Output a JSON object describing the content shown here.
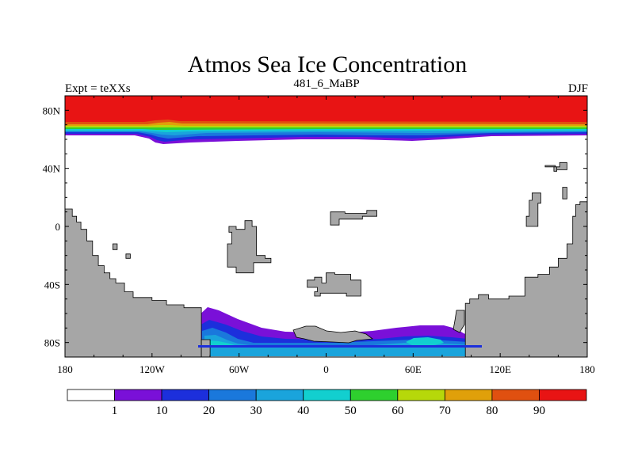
{
  "chart_data": {
    "type": "heatmap",
    "title": "Atmos Sea Ice Concentration",
    "left_label": "Expt = teXXs",
    "center_label": "481_6_MaBP",
    "right_label": "DJF",
    "xlim": [
      -180,
      180
    ],
    "ylim": [
      -90,
      90
    ],
    "x_ticks": [
      {
        "value": -180,
        "label": "180"
      },
      {
        "value": -120,
        "label": "120W"
      },
      {
        "value": -60,
        "label": "60W"
      },
      {
        "value": 0,
        "label": "0"
      },
      {
        "value": 60,
        "label": "60E"
      },
      {
        "value": 120,
        "label": "120E"
      },
      {
        "value": 180,
        "label": "180"
      }
    ],
    "y_ticks": [
      {
        "value": 80,
        "label": "80N"
      },
      {
        "value": 40,
        "label": "40N"
      },
      {
        "value": 0,
        "label": "0"
      },
      {
        "value": -40,
        "label": "40S"
      },
      {
        "value": -80,
        "label": "80S"
      }
    ],
    "colorbar": {
      "levels": [
        "1",
        "10",
        "20",
        "30",
        "40",
        "50",
        "60",
        "70",
        "80",
        "90"
      ],
      "colors": [
        "#ffffff",
        "#7a10d8",
        "#1c2fdc",
        "#1a78dc",
        "#1aa4dc",
        "#12cfcf",
        "#2ed02e",
        "#b6d80a",
        "#e0a00a",
        "#e05010",
        "#e81414"
      ]
    },
    "land_color": "#a6a6a6",
    "arctic_ice": {
      "description_band_lats": [
        70,
        66,
        64,
        62
      ],
      "top_value": 95
    },
    "land_masses": [
      {
        "name": "americas",
        "outline": [
          [
            -180,
            -90
          ],
          [
            -180,
            12
          ],
          [
            -175,
            12
          ],
          [
            -175,
            7
          ],
          [
            -172,
            7
          ],
          [
            -172,
            3
          ],
          [
            -169,
            3
          ],
          [
            -169,
            -2
          ],
          [
            -165,
            -2
          ],
          [
            -165,
            -10
          ],
          [
            -161,
            -10
          ],
          [
            -161,
            -20
          ],
          [
            -157,
            -20
          ],
          [
            -157,
            -27
          ],
          [
            -153,
            -27
          ],
          [
            -153,
            -32
          ],
          [
            -149,
            -32
          ],
          [
            -149,
            -36
          ],
          [
            -145,
            -36
          ],
          [
            -145,
            -39
          ],
          [
            -139,
            -39
          ],
          [
            -139,
            -45
          ],
          [
            -133,
            -45
          ],
          [
            -133,
            -49
          ],
          [
            -120,
            -49
          ],
          [
            -120,
            -51
          ],
          [
            -110,
            -51
          ],
          [
            -110,
            -54
          ],
          [
            -98,
            -54
          ],
          [
            -98,
            -56
          ],
          [
            -86,
            -56
          ],
          [
            -86,
            -90
          ]
        ]
      },
      {
        "name": "eurasia",
        "outline": [
          [
            180,
            -90
          ],
          [
            180,
            17
          ],
          [
            175,
            17
          ],
          [
            175,
            15
          ],
          [
            172,
            15
          ],
          [
            172,
            7
          ],
          [
            170,
            7
          ],
          [
            170,
            -12
          ],
          [
            166,
            -12
          ],
          [
            166,
            -22
          ],
          [
            160,
            -22
          ],
          [
            160,
            -28
          ],
          [
            154,
            -28
          ],
          [
            154,
            -33
          ],
          [
            146,
            -33
          ],
          [
            146,
            -35
          ],
          [
            137,
            -35
          ],
          [
            137,
            -48
          ],
          [
            126,
            -48
          ],
          [
            126,
            -50
          ],
          [
            112,
            -50
          ],
          [
            112,
            -47
          ],
          [
            105,
            -47
          ],
          [
            105,
            -50
          ],
          [
            99,
            -50
          ],
          [
            99,
            -53
          ],
          [
            96,
            -53
          ],
          [
            96,
            -90
          ]
        ]
      },
      {
        "name": "africa",
        "outline": [
          [
            -67,
            0
          ],
          [
            -62,
            0
          ],
          [
            -62,
            -2
          ],
          [
            -56,
            -2
          ],
          [
            -56,
            4
          ],
          [
            -51,
            4
          ],
          [
            -51,
            0
          ],
          [
            -48,
            0
          ],
          [
            -48,
            -20
          ],
          [
            -42,
            -20
          ],
          [
            -42,
            -22
          ],
          [
            -38,
            -22
          ],
          [
            -38,
            -25
          ],
          [
            -50,
            -25
          ],
          [
            -50,
            -32
          ],
          [
            -62,
            -32
          ],
          [
            -62,
            -28
          ],
          [
            -68,
            -28
          ],
          [
            -68,
            -12
          ],
          [
            -65,
            -12
          ],
          [
            -65,
            -4
          ],
          [
            -67,
            -4
          ]
        ]
      },
      {
        "name": "india",
        "outline": [
          [
            3,
            10
          ],
          [
            13,
            10
          ],
          [
            13,
            9
          ],
          [
            28,
            9
          ],
          [
            28,
            11
          ],
          [
            35,
            11
          ],
          [
            35,
            7
          ],
          [
            25,
            7
          ],
          [
            25,
            5
          ],
          [
            9,
            5
          ],
          [
            9,
            1
          ],
          [
            3,
            1
          ]
        ]
      },
      {
        "name": "arabia",
        "outline": [
          [
            0,
            -32
          ],
          [
            6,
            -32
          ],
          [
            6,
            -33
          ],
          [
            17,
            -33
          ],
          [
            17,
            -37
          ],
          [
            24,
            -37
          ],
          [
            24,
            -48
          ],
          [
            14,
            -48
          ],
          [
            14,
            -46
          ],
          [
            -4,
            -46
          ],
          [
            -4,
            -48
          ],
          [
            -8,
            -48
          ],
          [
            -8,
            -45
          ],
          [
            -6,
            -45
          ],
          [
            -6,
            -42
          ],
          [
            -13,
            -42
          ],
          [
            -13,
            -37
          ],
          [
            -8,
            -37
          ],
          [
            -8,
            -35
          ],
          [
            -3,
            -35
          ],
          [
            -3,
            -39
          ],
          [
            0,
            -39
          ]
        ]
      },
      {
        "name": "japan",
        "outline": [
          [
            142,
            23
          ],
          [
            148,
            23
          ],
          [
            148,
            16
          ],
          [
            146,
            16
          ],
          [
            146,
            0
          ],
          [
            138,
            0
          ],
          [
            138,
            7
          ],
          [
            140,
            7
          ],
          [
            140,
            18
          ],
          [
            142,
            18
          ]
        ]
      },
      {
        "name": "kamchatka",
        "outline": [
          [
            151,
            42
          ],
          [
            158,
            42
          ],
          [
            158,
            39
          ],
          [
            166,
            39
          ],
          [
            166,
            44
          ],
          [
            161,
            44
          ],
          [
            161,
            41
          ],
          [
            151,
            41
          ]
        ]
      },
      {
        "name": "kamchatka-tip",
        "outline": [
          [
            157,
            41
          ],
          [
            159,
            41
          ],
          [
            159,
            38
          ],
          [
            157,
            38
          ]
        ]
      },
      {
        "name": "island-a",
        "outline": [
          [
            163,
            27
          ],
          [
            166,
            27
          ],
          [
            166,
            19
          ],
          [
            163,
            19
          ]
        ]
      },
      {
        "name": "island-b",
        "outline": [
          [
            -147,
            -12
          ],
          [
            -144,
            -12
          ],
          [
            -144,
            -16
          ],
          [
            -147,
            -16
          ]
        ]
      },
      {
        "name": "island-c",
        "outline": [
          [
            -138,
            -19
          ],
          [
            -135,
            -19
          ],
          [
            -135,
            -22
          ],
          [
            -138,
            -22
          ]
        ]
      },
      {
        "name": "antarctic-coast-west",
        "outline": [
          [
            -86,
            -78
          ],
          [
            -80,
            -78
          ],
          [
            -80,
            -90
          ],
          [
            -86,
            -90
          ]
        ]
      }
    ]
  }
}
